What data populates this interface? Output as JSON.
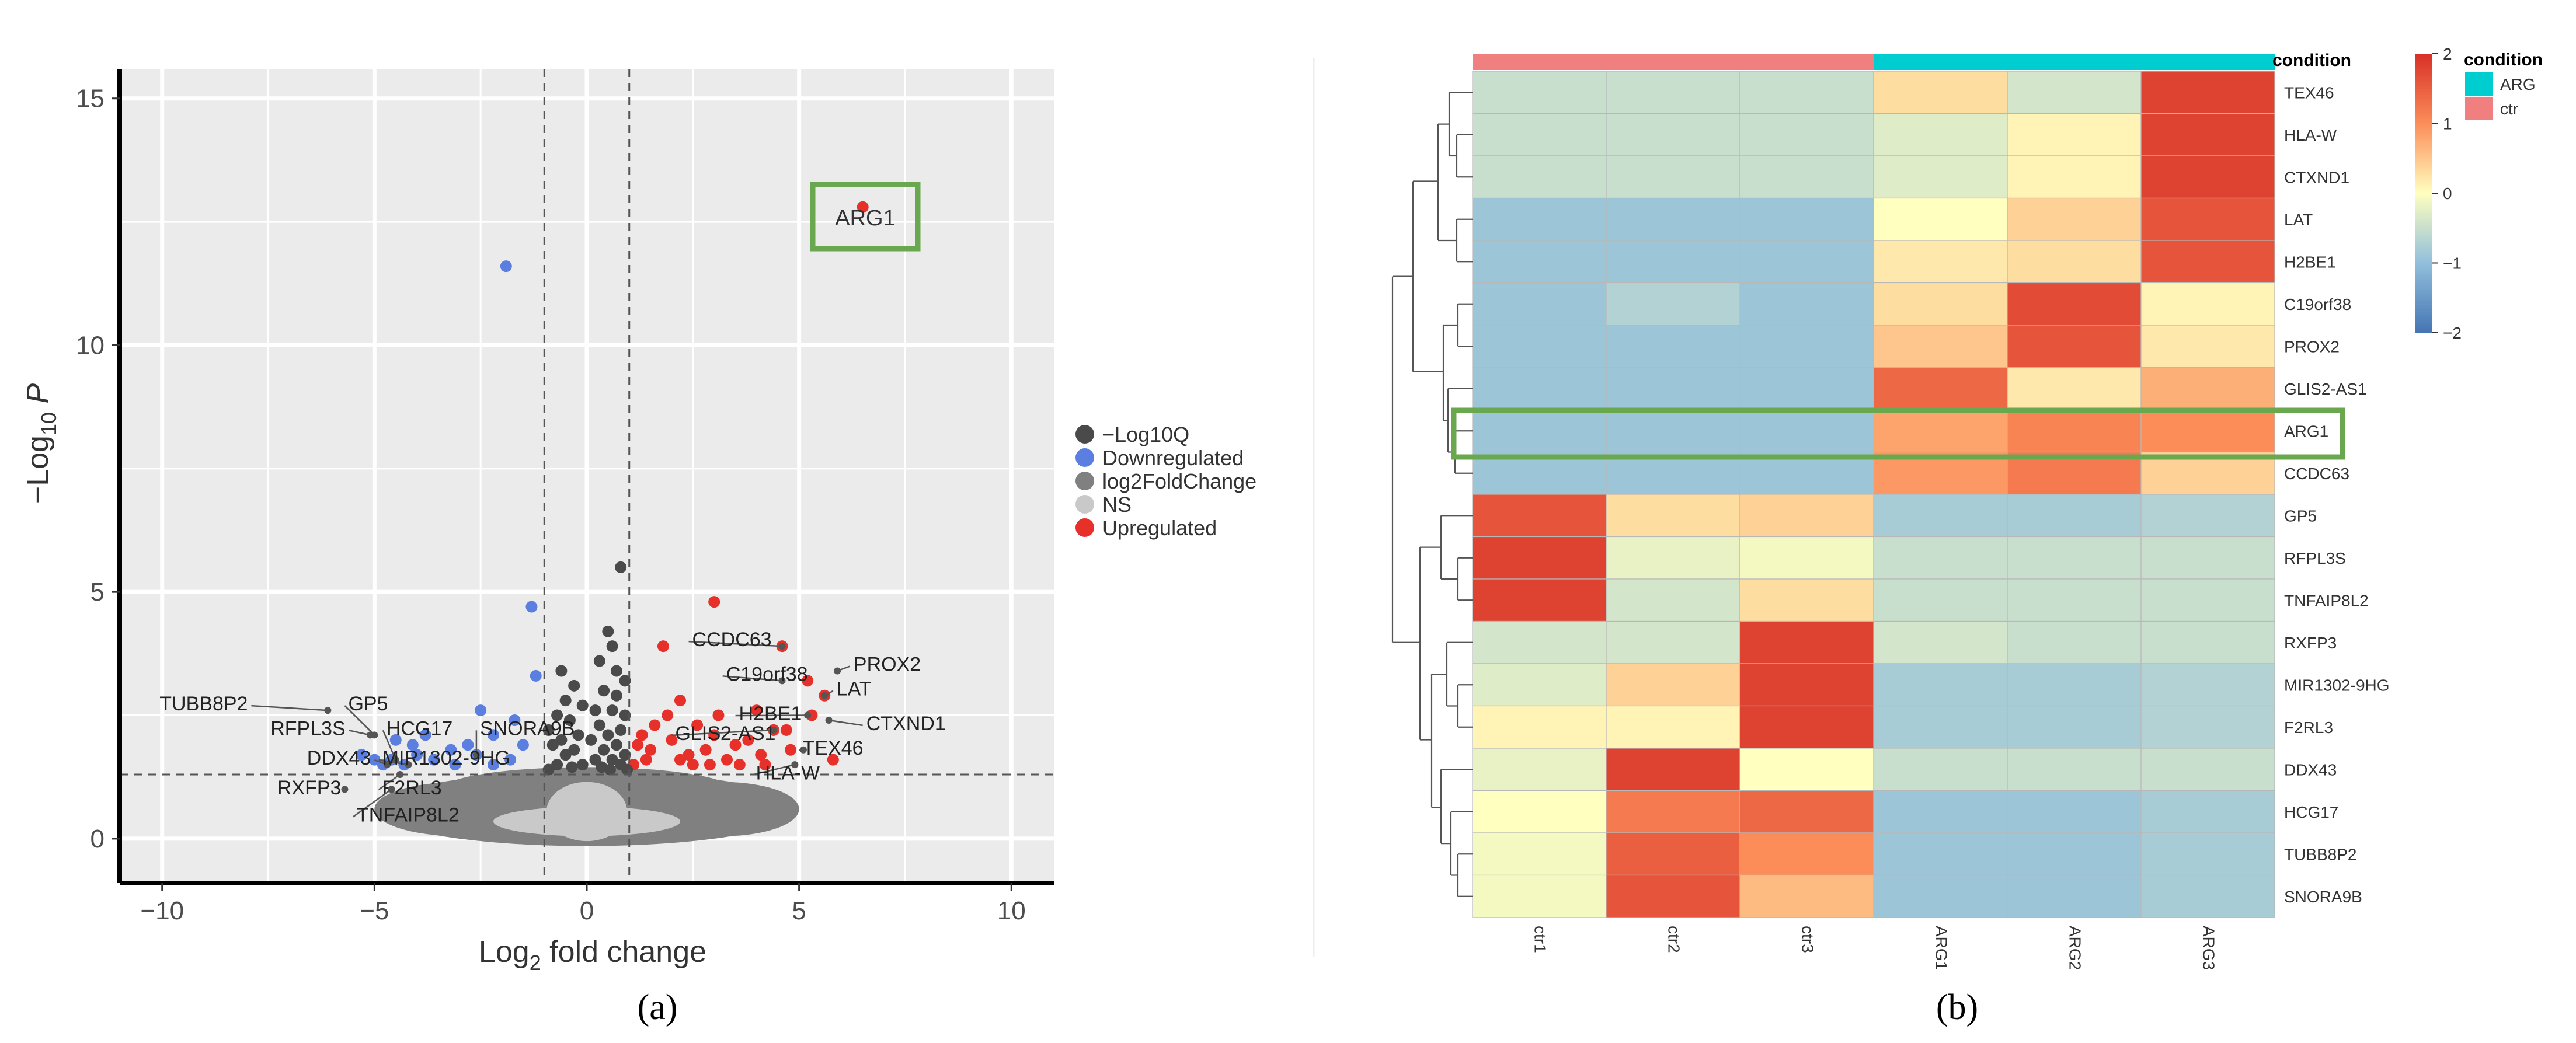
{
  "colors": {
    "panel_bg": "#ebebeb",
    "grid": "#ffffff",
    "up": "#e8302b",
    "down": "#5b7fe0",
    "log10q": "#4a4a4a",
    "log2fc": "#808080",
    "ns": "#c9c9c9",
    "highlight": "#6aa84f",
    "bar_ctr": "#f08080",
    "bar_arg": "#00cdd0"
  },
  "panel_labels": {
    "a": "(a)",
    "b": "(b)"
  },
  "chart_data": [
    {
      "type": "scatter",
      "title": "",
      "xlabel_main": "Log",
      "xlabel_sub": "2",
      "xlabel_rest": " fold change",
      "ylabel_main": "−Log",
      "ylabel_sub": "10",
      "ylabel_p": "P",
      "xlim": [
        -11,
        11
      ],
      "ylim": [
        -0.9,
        15.6
      ],
      "x_ticks": [
        -10,
        -5,
        0,
        5,
        10
      ],
      "x_tick_labels": [
        "−10",
        "−5",
        "0",
        "5",
        "10"
      ],
      "y_ticks": [
        0,
        5,
        10,
        15
      ],
      "y_tick_labels": [
        "0",
        "5",
        "10",
        "15"
      ],
      "cutoffs": {
        "fc": [
          -1,
          1
        ],
        "p": 1.3
      },
      "legend": {
        "placement": "right",
        "items": [
          {
            "label": "−Log10Q",
            "key": "log10q"
          },
          {
            "label": "Downregulated",
            "key": "down"
          },
          {
            "label": "log2FoldChange",
            "key": "log2fc"
          },
          {
            "label": "NS",
            "key": "ns"
          },
          {
            "label": "Upregulated",
            "key": "up"
          }
        ]
      },
      "highlight_label": "ARG1",
      "series": [
        {
          "name": "Upregulated",
          "points": [
            [
              6.5,
              12.8
            ],
            [
              3.0,
              4.8
            ],
            [
              1.8,
              3.9
            ],
            [
              4.6,
              3.9
            ],
            [
              5.2,
              3.2
            ],
            [
              5.6,
              2.9
            ],
            [
              5.3,
              2.5
            ],
            [
              4.4,
              2.2
            ],
            [
              4.8,
              1.8
            ],
            [
              4.2,
              1.5
            ],
            [
              2.2,
              2.8
            ],
            [
              1.6,
              2.3
            ],
            [
              3.1,
              2.5
            ],
            [
              2.0,
              2.0
            ],
            [
              1.2,
              1.9
            ],
            [
              2.8,
              1.8
            ],
            [
              3.5,
              1.9
            ],
            [
              4.0,
              2.6
            ],
            [
              1.4,
              1.6
            ],
            [
              2.5,
              1.5
            ],
            [
              3.3,
              1.6
            ],
            [
              1.9,
              2.5
            ],
            [
              2.6,
              2.3
            ],
            [
              3.8,
              2.0
            ],
            [
              1.1,
              1.5
            ],
            [
              2.4,
              1.7
            ],
            [
              3.0,
              2.1
            ],
            [
              5.8,
              1.6
            ],
            [
              4.1,
              1.7
            ],
            [
              1.5,
              1.8
            ],
            [
              2.2,
              1.6
            ],
            [
              3.6,
              1.5
            ],
            [
              4.7,
              2.2
            ],
            [
              1.3,
              2.1
            ],
            [
              2.9,
              1.5
            ]
          ]
        },
        {
          "name": "Downregulated",
          "points": [
            [
              -1.9,
              11.6
            ],
            [
              -1.3,
              4.7
            ],
            [
              -1.2,
              3.3
            ],
            [
              -2.5,
              2.6
            ],
            [
              -1.7,
              2.4
            ],
            [
              -2.2,
              2.1
            ],
            [
              -1.5,
              1.9
            ],
            [
              -2.6,
              1.7
            ],
            [
              -3.2,
              1.8
            ],
            [
              -3.6,
              1.6
            ],
            [
              -4.0,
              1.7
            ],
            [
              -4.3,
              1.5
            ],
            [
              -4.6,
              1.6
            ],
            [
              -5.0,
              1.6
            ],
            [
              -3.1,
              1.5
            ],
            [
              -2.8,
              1.9
            ],
            [
              -4.8,
              1.5
            ],
            [
              -4.1,
              1.9
            ],
            [
              -3.8,
              2.1
            ],
            [
              -1.8,
              1.6
            ],
            [
              -2.2,
              1.5
            ],
            [
              -4.5,
              2.0
            ],
            [
              -5.3,
              1.7
            ]
          ]
        },
        {
          "name": "-Log10Q",
          "points": [
            [
              0.8,
              5.5
            ],
            [
              0.5,
              4.2
            ],
            [
              0.6,
              3.9
            ],
            [
              0.3,
              3.6
            ],
            [
              0.7,
              3.4
            ],
            [
              0.9,
              3.2
            ],
            [
              -0.6,
              3.4
            ],
            [
              -0.3,
              3.1
            ],
            [
              0.4,
              3.0
            ],
            [
              0.7,
              2.9
            ],
            [
              -0.5,
              2.8
            ],
            [
              -0.1,
              2.7
            ],
            [
              0.2,
              2.6
            ],
            [
              0.6,
              2.6
            ],
            [
              0.9,
              2.5
            ],
            [
              -0.7,
              2.5
            ],
            [
              -0.4,
              2.4
            ],
            [
              0.3,
              2.3
            ],
            [
              0.8,
              2.2
            ],
            [
              -0.9,
              2.2
            ],
            [
              -0.2,
              2.1
            ],
            [
              0.5,
              2.1
            ],
            [
              0.1,
              2.0
            ],
            [
              -0.6,
              2.0
            ],
            [
              0.7,
              1.9
            ],
            [
              -0.8,
              1.9
            ],
            [
              0.4,
              1.8
            ],
            [
              -0.3,
              1.8
            ],
            [
              0.9,
              1.7
            ],
            [
              -0.5,
              1.7
            ],
            [
              0.2,
              1.6
            ],
            [
              0.6,
              1.6
            ],
            [
              -0.7,
              1.5
            ],
            [
              -0.1,
              1.5
            ],
            [
              0.8,
              1.5
            ],
            [
              0.35,
              1.45
            ],
            [
              -0.35,
              1.45
            ],
            [
              0.55,
              1.4
            ],
            [
              -0.9,
              1.4
            ],
            [
              0.95,
              1.4
            ]
          ]
        }
      ],
      "cloud_dark": [
        {
          "x": 0.0,
          "y": 0.6,
          "rx": 5.0,
          "ry": 0.75
        },
        {
          "x": -3.0,
          "y": 0.6,
          "rx": 2.0,
          "ry": 0.55
        },
        {
          "x": 3.2,
          "y": 0.6,
          "rx": 1.8,
          "ry": 0.55
        },
        {
          "x": 0.0,
          "y": 1.0,
          "rx": 3.4,
          "ry": 0.45
        }
      ],
      "cloud_light": [
        {
          "x": 0.0,
          "y": 0.55,
          "rx": 0.95,
          "ry": 0.6
        },
        {
          "x": 0.0,
          "y": 0.35,
          "rx": 2.2,
          "ry": 0.3
        }
      ],
      "annotations": [
        {
          "label": "TUBB8P2",
          "px": -6.1,
          "py": 2.6,
          "tx": -7.9,
          "ty": 2.6,
          "anchor": "end"
        },
        {
          "label": "GP5",
          "px": -5.0,
          "py": 2.1,
          "tx": -5.7,
          "ty": 2.6,
          "anchor": "start"
        },
        {
          "label": "HCG17",
          "px": -4.5,
          "py": 1.6,
          "tx": -4.8,
          "ty": 2.1,
          "anchor": "start"
        },
        {
          "label": "SNORA9B",
          "px": -2.6,
          "py": 1.7,
          "tx": -2.6,
          "ty": 2.1,
          "anchor": "start"
        },
        {
          "label": "RFPL3S",
          "px": -5.1,
          "py": 2.1,
          "tx": -5.6,
          "ty": 2.1,
          "anchor": "end"
        },
        {
          "label": "DDX43",
          "px": -4.7,
          "py": 1.5,
          "tx": -5.0,
          "ty": 1.5,
          "anchor": "end"
        },
        {
          "label": "MIR1302-9HG",
          "px": -4.2,
          "py": 1.5,
          "tx": -4.9,
          "ty": 1.5,
          "anchor": "start"
        },
        {
          "label": "RXFP3",
          "px": -5.7,
          "py": 1.0,
          "tx": -5.7,
          "ty": 0.9,
          "anchor": "end"
        },
        {
          "label": "F2RL3",
          "px": -4.4,
          "py": 1.3,
          "tx": -4.9,
          "ty": 0.9,
          "anchor": "start"
        },
        {
          "label": "TNFAIP8L2",
          "px": -4.6,
          "py": 1.0,
          "tx": -5.5,
          "ty": 0.35,
          "anchor": "start"
        },
        {
          "label": "CCDC63",
          "px": 4.6,
          "py": 3.9,
          "tx": 2.4,
          "ty": 3.9,
          "anchor": "start"
        },
        {
          "label": "C19orf38",
          "px": 4.6,
          "py": 3.2,
          "tx": 3.2,
          "ty": 3.2,
          "anchor": "start"
        },
        {
          "label": "PROX2",
          "px": 5.9,
          "py": 3.4,
          "tx": 6.2,
          "ty": 3.4,
          "anchor": "start"
        },
        {
          "label": "LAT",
          "px": 5.6,
          "py": 2.9,
          "tx": 5.8,
          "ty": 2.9,
          "anchor": "start"
        },
        {
          "label": "H2BE1",
          "px": 5.2,
          "py": 2.5,
          "tx": 3.5,
          "ty": 2.4,
          "anchor": "start"
        },
        {
          "label": "CTXND1",
          "px": 5.7,
          "py": 2.4,
          "tx": 6.5,
          "ty": 2.2,
          "anchor": "start"
        },
        {
          "label": "GLIS2-AS1",
          "px": 4.4,
          "py": 2.2,
          "tx": 2.0,
          "ty": 2.0,
          "anchor": "start"
        },
        {
          "label": "TEX46",
          "px": 5.1,
          "py": 1.8,
          "tx": 5.0,
          "ty": 1.7,
          "anchor": "start"
        },
        {
          "label": "HLA-W",
          "px": 4.9,
          "py": 1.5,
          "tx": 3.9,
          "ty": 1.2,
          "anchor": "start"
        }
      ]
    },
    {
      "type": "heatmap",
      "title": "",
      "columns": [
        "ctr1",
        "ctr2",
        "ctr3",
        "ARG1",
        "ARG2",
        "ARG3"
      ],
      "condition": [
        "ctr",
        "ctr",
        "ctr",
        "ARG",
        "ARG",
        "ARG"
      ],
      "condition_label": "condition",
      "rows": [
        "TEX46",
        "HLA-W",
        "CTXND1",
        "LAT",
        "H2BE1",
        "C19orf38",
        "PROX2",
        "GLIS2-AS1",
        "ARG1",
        "CCDC63",
        "GP5",
        "RFPL3S",
        "TNFAIP8L2",
        "RXFP3",
        "MIR1302-9HG",
        "F2RL3",
        "DDX43",
        "HCG17",
        "TUBB8P2",
        "SNORA9B"
      ],
      "values": [
        [
          -0.5,
          -0.5,
          -0.5,
          0.3,
          -0.4,
          1.8
        ],
        [
          -0.5,
          -0.5,
          -0.5,
          -0.3,
          0.1,
          1.8
        ],
        [
          -0.5,
          -0.5,
          -0.5,
          -0.3,
          0.1,
          1.8
        ],
        [
          -0.9,
          -0.9,
          -0.9,
          0.0,
          0.4,
          1.6
        ],
        [
          -0.9,
          -0.9,
          -0.9,
          0.2,
          0.3,
          1.6
        ],
        [
          -0.9,
          -0.7,
          -0.9,
          0.3,
          1.7,
          0.1
        ],
        [
          -0.9,
          -0.9,
          -0.9,
          0.5,
          1.6,
          0.2
        ],
        [
          -0.9,
          -0.9,
          -0.9,
          1.4,
          0.2,
          0.7
        ],
        [
          -0.9,
          -0.9,
          -0.9,
          0.8,
          1.1,
          1.0
        ],
        [
          -0.9,
          -0.9,
          -0.9,
          0.9,
          1.2,
          0.4
        ],
        [
          1.6,
          0.3,
          0.4,
          -0.8,
          -0.8,
          -0.7
        ],
        [
          1.8,
          -0.2,
          -0.1,
          -0.5,
          -0.5,
          -0.5
        ],
        [
          1.8,
          -0.4,
          0.3,
          -0.5,
          -0.5,
          -0.5
        ],
        [
          -0.4,
          -0.4,
          1.8,
          -0.4,
          -0.5,
          -0.5
        ],
        [
          -0.3,
          0.4,
          1.8,
          -0.8,
          -0.8,
          -0.7
        ],
        [
          0.1,
          0.1,
          1.8,
          -0.8,
          -0.8,
          -0.7
        ],
        [
          -0.2,
          1.8,
          0.0,
          -0.5,
          -0.5,
          -0.5
        ],
        [
          0.0,
          1.2,
          1.4,
          -0.9,
          -0.9,
          -0.8
        ],
        [
          -0.1,
          1.5,
          1.0,
          -0.9,
          -0.9,
          -0.8
        ],
        [
          -0.1,
          1.6,
          0.6,
          -0.9,
          -0.9,
          -0.8
        ]
      ],
      "color_range": [
        -2,
        2
      ],
      "colorbar_ticks": [
        2,
        1,
        0,
        -1,
        -2
      ],
      "colorbar_tick_labels": [
        "2",
        "1",
        "0",
        "−1",
        "−2"
      ],
      "legend": {
        "title": "condition",
        "items": [
          {
            "label": "ARG",
            "key": "bar_arg"
          },
          {
            "label": "ctr",
            "key": "bar_ctr"
          }
        ]
      },
      "highlight_row": "ARG1"
    }
  ]
}
